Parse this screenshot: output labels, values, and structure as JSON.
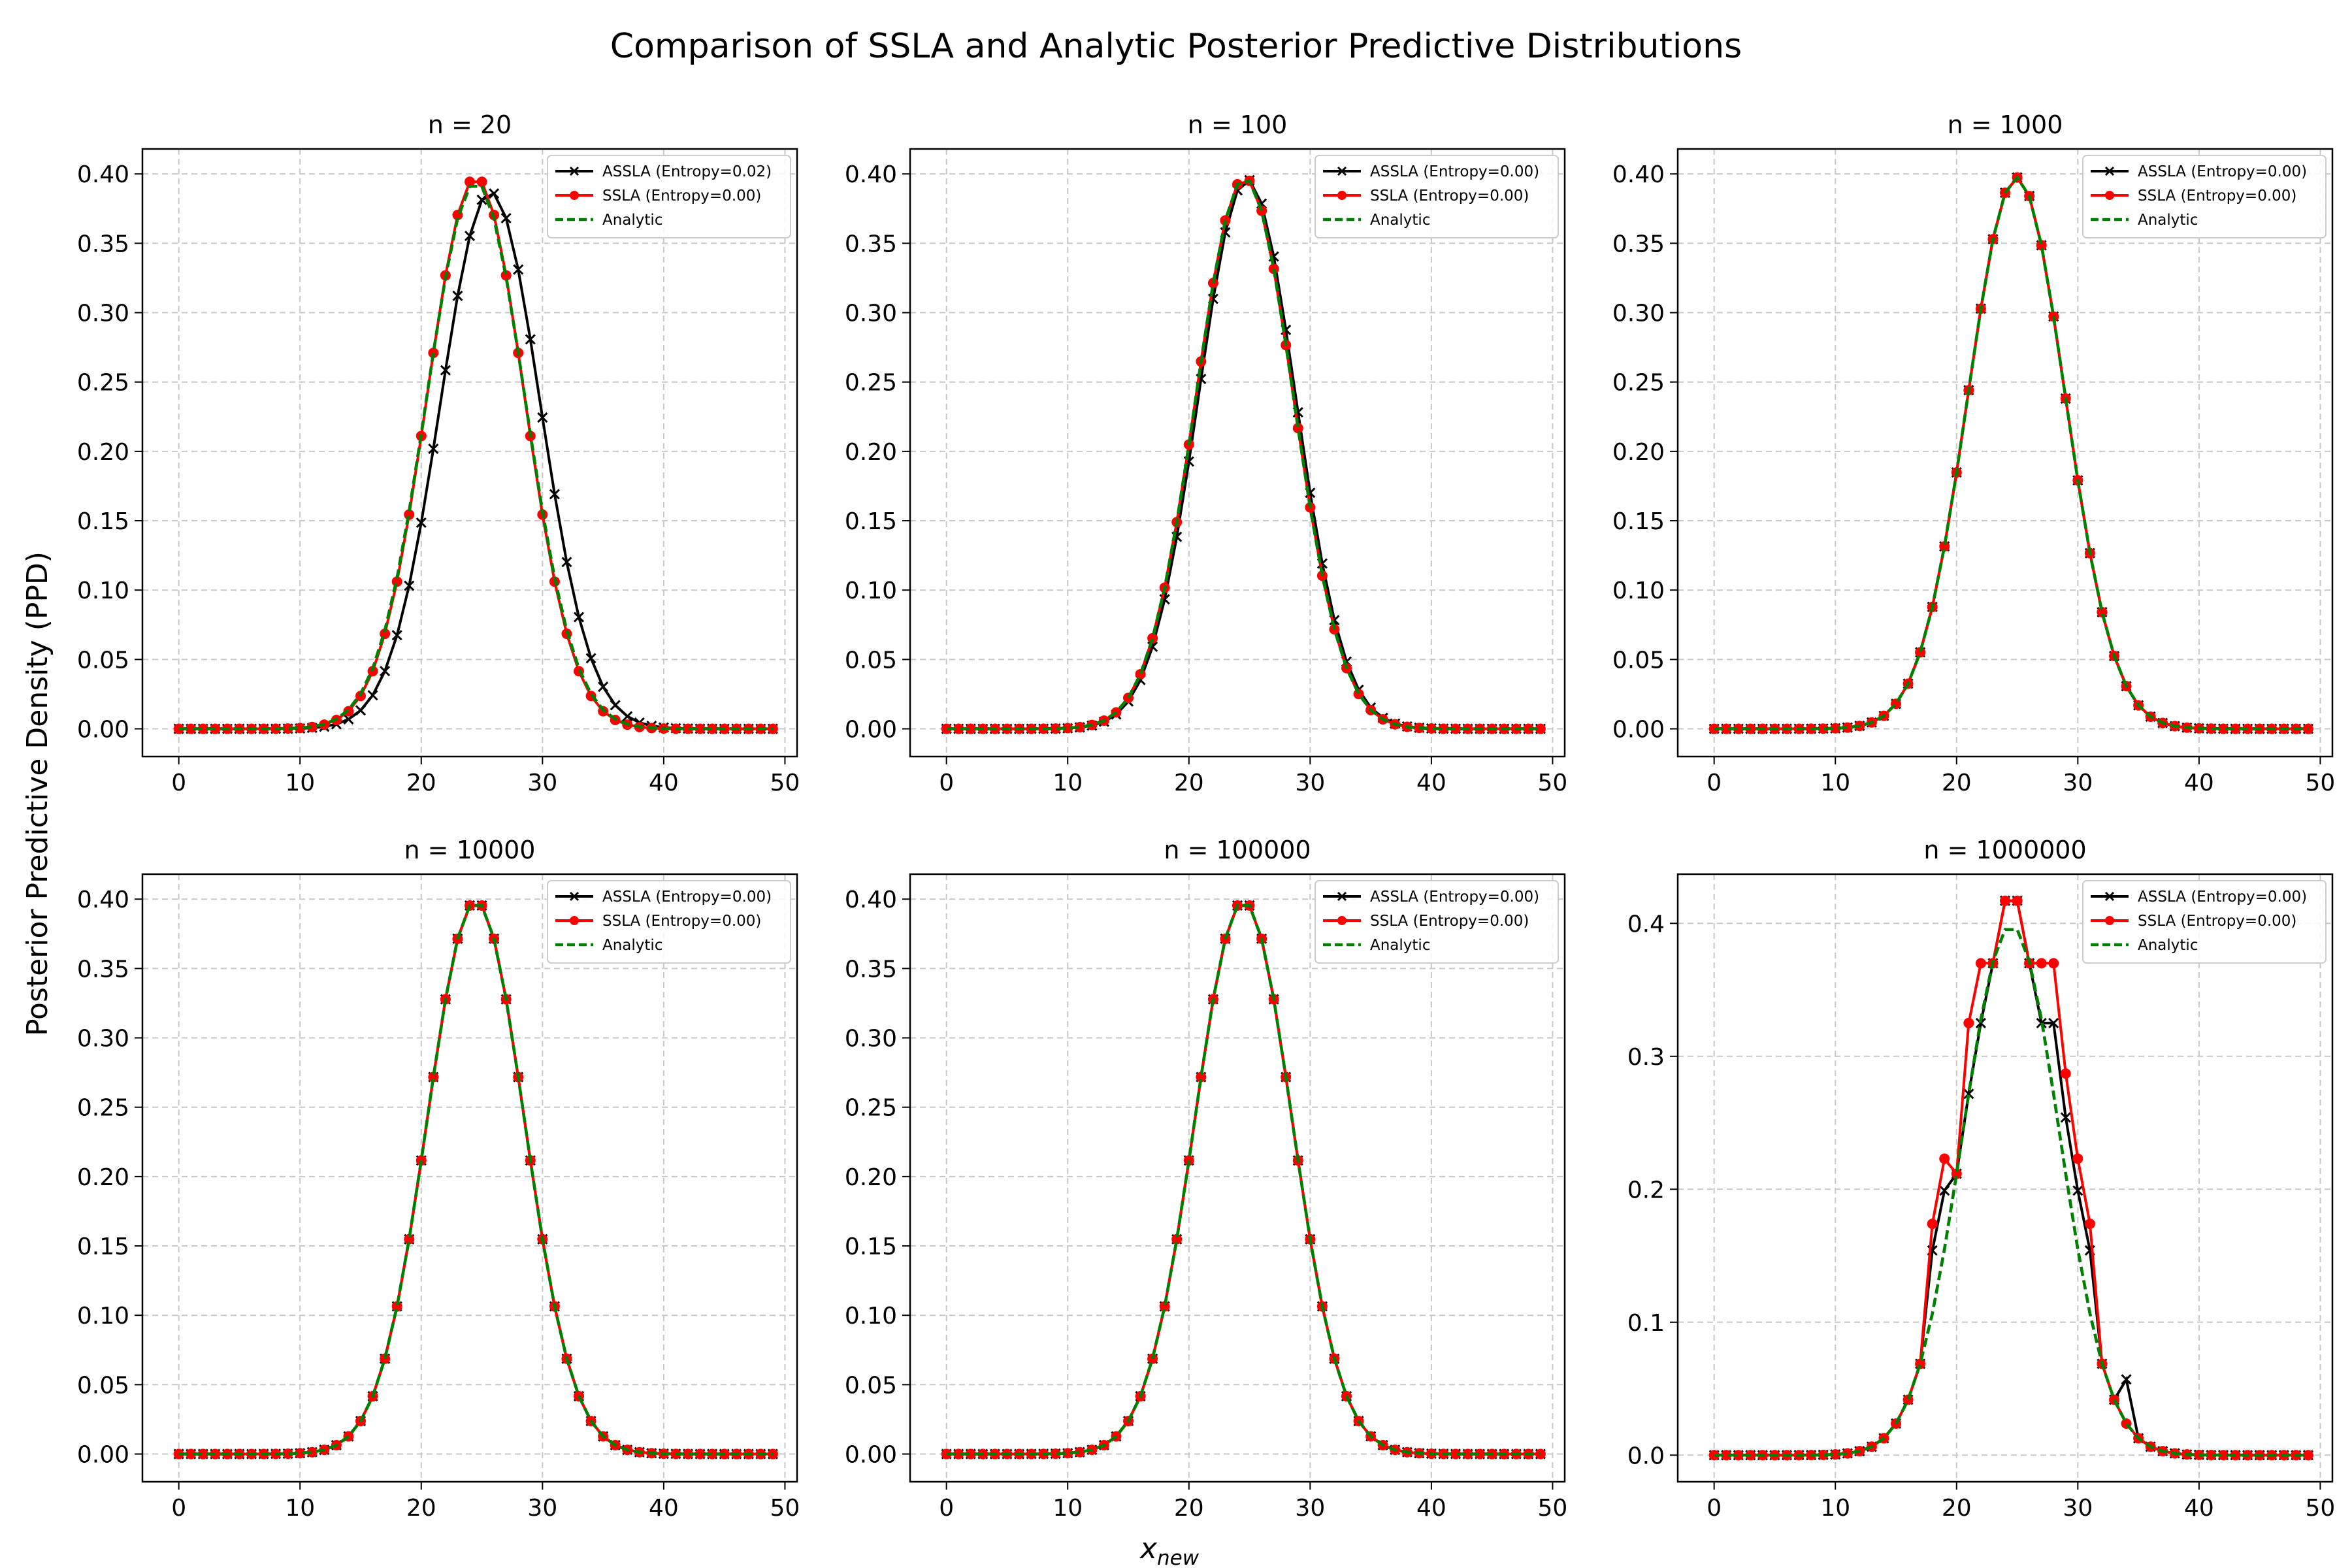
{
  "figure": {
    "title": "Comparison of SSLA and Analytic Posterior Predictive Distributions",
    "ylabel": "Posterior Predictive Density (PPD)",
    "xlabel": "x",
    "xlabel_subscript": "new"
  },
  "colors": {
    "assla": "#000000",
    "ssla": "#ff0000",
    "analytic": "#008000",
    "grid": "#c8c8c8"
  },
  "chart_data": [
    {
      "type": "line",
      "title": "n = 20",
      "xlim": [
        -3,
        51
      ],
      "ylim": [
        -0.02,
        0.418
      ],
      "yticks": [
        0.0,
        0.05,
        0.1,
        0.15,
        0.2,
        0.25,
        0.3,
        0.35,
        0.4
      ],
      "ytick_labels": [
        "0.00",
        "0.05",
        "0.10",
        "0.15",
        "0.20",
        "0.25",
        "0.30",
        "0.35",
        "0.40"
      ],
      "xticks": [
        0,
        10,
        20,
        30,
        40,
        50
      ],
      "grid": true,
      "legend_position": "top-right",
      "x_start": 0,
      "x_step": 1,
      "series": [
        {
          "name": "ASSLA (Entropy=0.02)",
          "key": "assla",
          "normal": {
            "mu": 25.7,
            "sigma": 4.12,
            "amp": 0.3869
          }
        },
        {
          "name": "SSLA (Entropy=0.00)",
          "key": "ssla",
          "normal": {
            "mu": 24.5,
            "sigma": 4.0,
            "amp": 0.3974
          }
        },
        {
          "name": "Analytic",
          "key": "analytic",
          "normal": {
            "mu": 24.5,
            "sigma": 4.05,
            "amp": 0.394
          }
        }
      ]
    },
    {
      "type": "line",
      "title": "n = 100",
      "xlim": [
        -3,
        51
      ],
      "ylim": [
        -0.02,
        0.418
      ],
      "yticks": [
        0.0,
        0.05,
        0.1,
        0.15,
        0.2,
        0.25,
        0.3,
        0.35,
        0.4
      ],
      "ytick_labels": [
        "0.00",
        "0.05",
        "0.10",
        "0.15",
        "0.20",
        "0.25",
        "0.30",
        "0.35",
        "0.40"
      ],
      "xticks": [
        0,
        10,
        20,
        30,
        40,
        50
      ],
      "grid": true,
      "legend_position": "top-right",
      "x_start": 0,
      "x_step": 1,
      "series": [
        {
          "name": "ASSLA (Entropy=0.00)",
          "key": "assla",
          "normal": {
            "mu": 24.8,
            "sigma": 4.0,
            "amp": 0.396
          }
        },
        {
          "name": "SSLA (Entropy=0.00)",
          "key": "ssla",
          "normal": {
            "mu": 24.6,
            "sigma": 4.0,
            "amp": 0.397
          }
        },
        {
          "name": "Analytic",
          "key": "analytic",
          "normal": {
            "mu": 24.6,
            "sigma": 4.0,
            "amp": 0.397
          }
        }
      ]
    },
    {
      "type": "line",
      "title": "n = 1000",
      "xlim": [
        -3,
        51
      ],
      "ylim": [
        -0.02,
        0.418
      ],
      "yticks": [
        0.0,
        0.05,
        0.1,
        0.15,
        0.2,
        0.25,
        0.3,
        0.35,
        0.4
      ],
      "ytick_labels": [
        "0.00",
        "0.05",
        "0.10",
        "0.15",
        "0.20",
        "0.25",
        "0.30",
        "0.35",
        "0.40"
      ],
      "xticks": [
        0,
        10,
        20,
        30,
        40,
        50
      ],
      "grid": true,
      "legend_position": "top-right",
      "x_start": 0,
      "x_step": 1,
      "series": [
        {
          "name": "ASSLA (Entropy=0.00)",
          "key": "assla",
          "normal": {
            "mu": 24.95,
            "sigma": 4.0,
            "amp": 0.3975
          }
        },
        {
          "name": "SSLA (Entropy=0.00)",
          "key": "ssla",
          "normal": {
            "mu": 24.95,
            "sigma": 4.0,
            "amp": 0.3975
          }
        },
        {
          "name": "Analytic",
          "key": "analytic",
          "normal": {
            "mu": 24.95,
            "sigma": 4.0,
            "amp": 0.3975
          }
        }
      ]
    },
    {
      "type": "line",
      "title": "n = 10000",
      "xlim": [
        -3,
        51
      ],
      "ylim": [
        -0.02,
        0.418
      ],
      "yticks": [
        0.0,
        0.05,
        0.1,
        0.15,
        0.2,
        0.25,
        0.3,
        0.35,
        0.4
      ],
      "ytick_labels": [
        "0.00",
        "0.05",
        "0.10",
        "0.15",
        "0.20",
        "0.25",
        "0.30",
        "0.35",
        "0.40"
      ],
      "xticks": [
        0,
        10,
        20,
        30,
        40,
        50
      ],
      "grid": true,
      "legend_position": "top-right",
      "x_start": 0,
      "x_step": 1,
      "series": [
        {
          "name": "ASSLA (Entropy=0.00)",
          "key": "assla",
          "normal": {
            "mu": 24.5,
            "sigma": 4.0,
            "amp": 0.3985
          }
        },
        {
          "name": "SSLA (Entropy=0.00)",
          "key": "ssla",
          "normal": {
            "mu": 24.5,
            "sigma": 4.0,
            "amp": 0.3985
          }
        },
        {
          "name": "Analytic",
          "key": "analytic",
          "normal": {
            "mu": 24.5,
            "sigma": 4.0,
            "amp": 0.3985
          }
        }
      ]
    },
    {
      "type": "line",
      "title": "n = 100000",
      "xlim": [
        -3,
        51
      ],
      "ylim": [
        -0.02,
        0.418
      ],
      "yticks": [
        0.0,
        0.05,
        0.1,
        0.15,
        0.2,
        0.25,
        0.3,
        0.35,
        0.4
      ],
      "ytick_labels": [
        "0.00",
        "0.05",
        "0.10",
        "0.15",
        "0.20",
        "0.25",
        "0.30",
        "0.35",
        "0.40"
      ],
      "xticks": [
        0,
        10,
        20,
        30,
        40,
        50
      ],
      "grid": true,
      "legend_position": "top-right",
      "x_start": 0,
      "x_step": 1,
      "series": [
        {
          "name": "ASSLA (Entropy=0.00)",
          "key": "assla",
          "normal": {
            "mu": 24.5,
            "sigma": 4.0,
            "amp": 0.3985
          }
        },
        {
          "name": "SSLA (Entropy=0.00)",
          "key": "ssla",
          "normal": {
            "mu": 24.5,
            "sigma": 4.0,
            "amp": 0.3985
          }
        },
        {
          "name": "Analytic",
          "key": "analytic",
          "normal": {
            "mu": 24.5,
            "sigma": 4.0,
            "amp": 0.3985
          }
        }
      ]
    },
    {
      "type": "line",
      "title": "n = 1000000",
      "xlim": [
        -3,
        51
      ],
      "ylim": [
        -0.02,
        0.437
      ],
      "yticks": [
        0.0,
        0.1,
        0.2,
        0.3,
        0.4
      ],
      "ytick_labels": [
        "0.0",
        "0.1",
        "0.2",
        "0.3",
        "0.4"
      ],
      "xticks": [
        0,
        10,
        20,
        30,
        40,
        50
      ],
      "grid": true,
      "legend_position": "top-right",
      "x_start": 0,
      "x_step": 1,
      "series": [
        {
          "name": "ASSLA (Entropy=0.00)",
          "key": "assla",
          "normal": {
            "mu": 24.5,
            "sigma": 4.0,
            "amp": 0.3985
          },
          "overrides": {
            "18": 0.154,
            "19": 0.199,
            "22": 0.325,
            "23": 0.37,
            "24": 0.417,
            "25": 0.417,
            "26": 0.37,
            "27": 0.325,
            "28": 0.325,
            "29": 0.254,
            "30": 0.199,
            "31": 0.154,
            "34": 0.057
          }
        },
        {
          "name": "SSLA (Entropy=0.00)",
          "key": "ssla",
          "normal": {
            "mu": 24.5,
            "sigma": 4.0,
            "amp": 0.3985
          },
          "overrides": {
            "18": 0.174,
            "19": 0.223,
            "21": 0.325,
            "22": 0.37,
            "23": 0.37,
            "24": 0.417,
            "25": 0.417,
            "26": 0.37,
            "27": 0.37,
            "28": 0.37,
            "29": 0.287,
            "30": 0.223,
            "31": 0.174
          }
        },
        {
          "name": "Analytic",
          "key": "analytic",
          "normal": {
            "mu": 24.5,
            "sigma": 4.0,
            "amp": 0.3985
          }
        }
      ]
    }
  ]
}
